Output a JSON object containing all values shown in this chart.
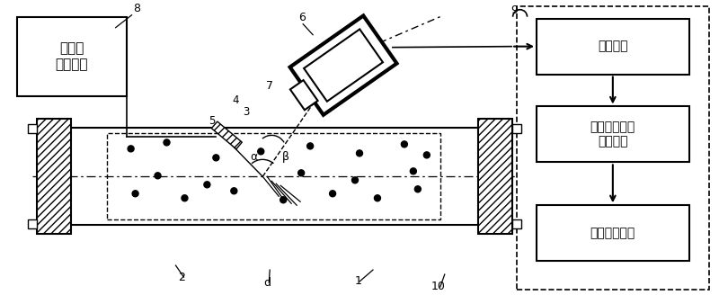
{
  "bg_color": "#ffffff",
  "box_labels": [
    "图像采集",
    "图像处理以及\n数据分析",
    "软件用户界面"
  ],
  "laser_label": "激光器\n控制模块",
  "label_8": "8",
  "label_9": "9",
  "label_6": "6",
  "label_7": "7",
  "label_4": "4",
  "label_3": "3",
  "label_5": "5",
  "label_alpha": "α",
  "label_beta": "β",
  "label_2": "2",
  "label_d": "d",
  "label_1": "1",
  "label_10": "10"
}
